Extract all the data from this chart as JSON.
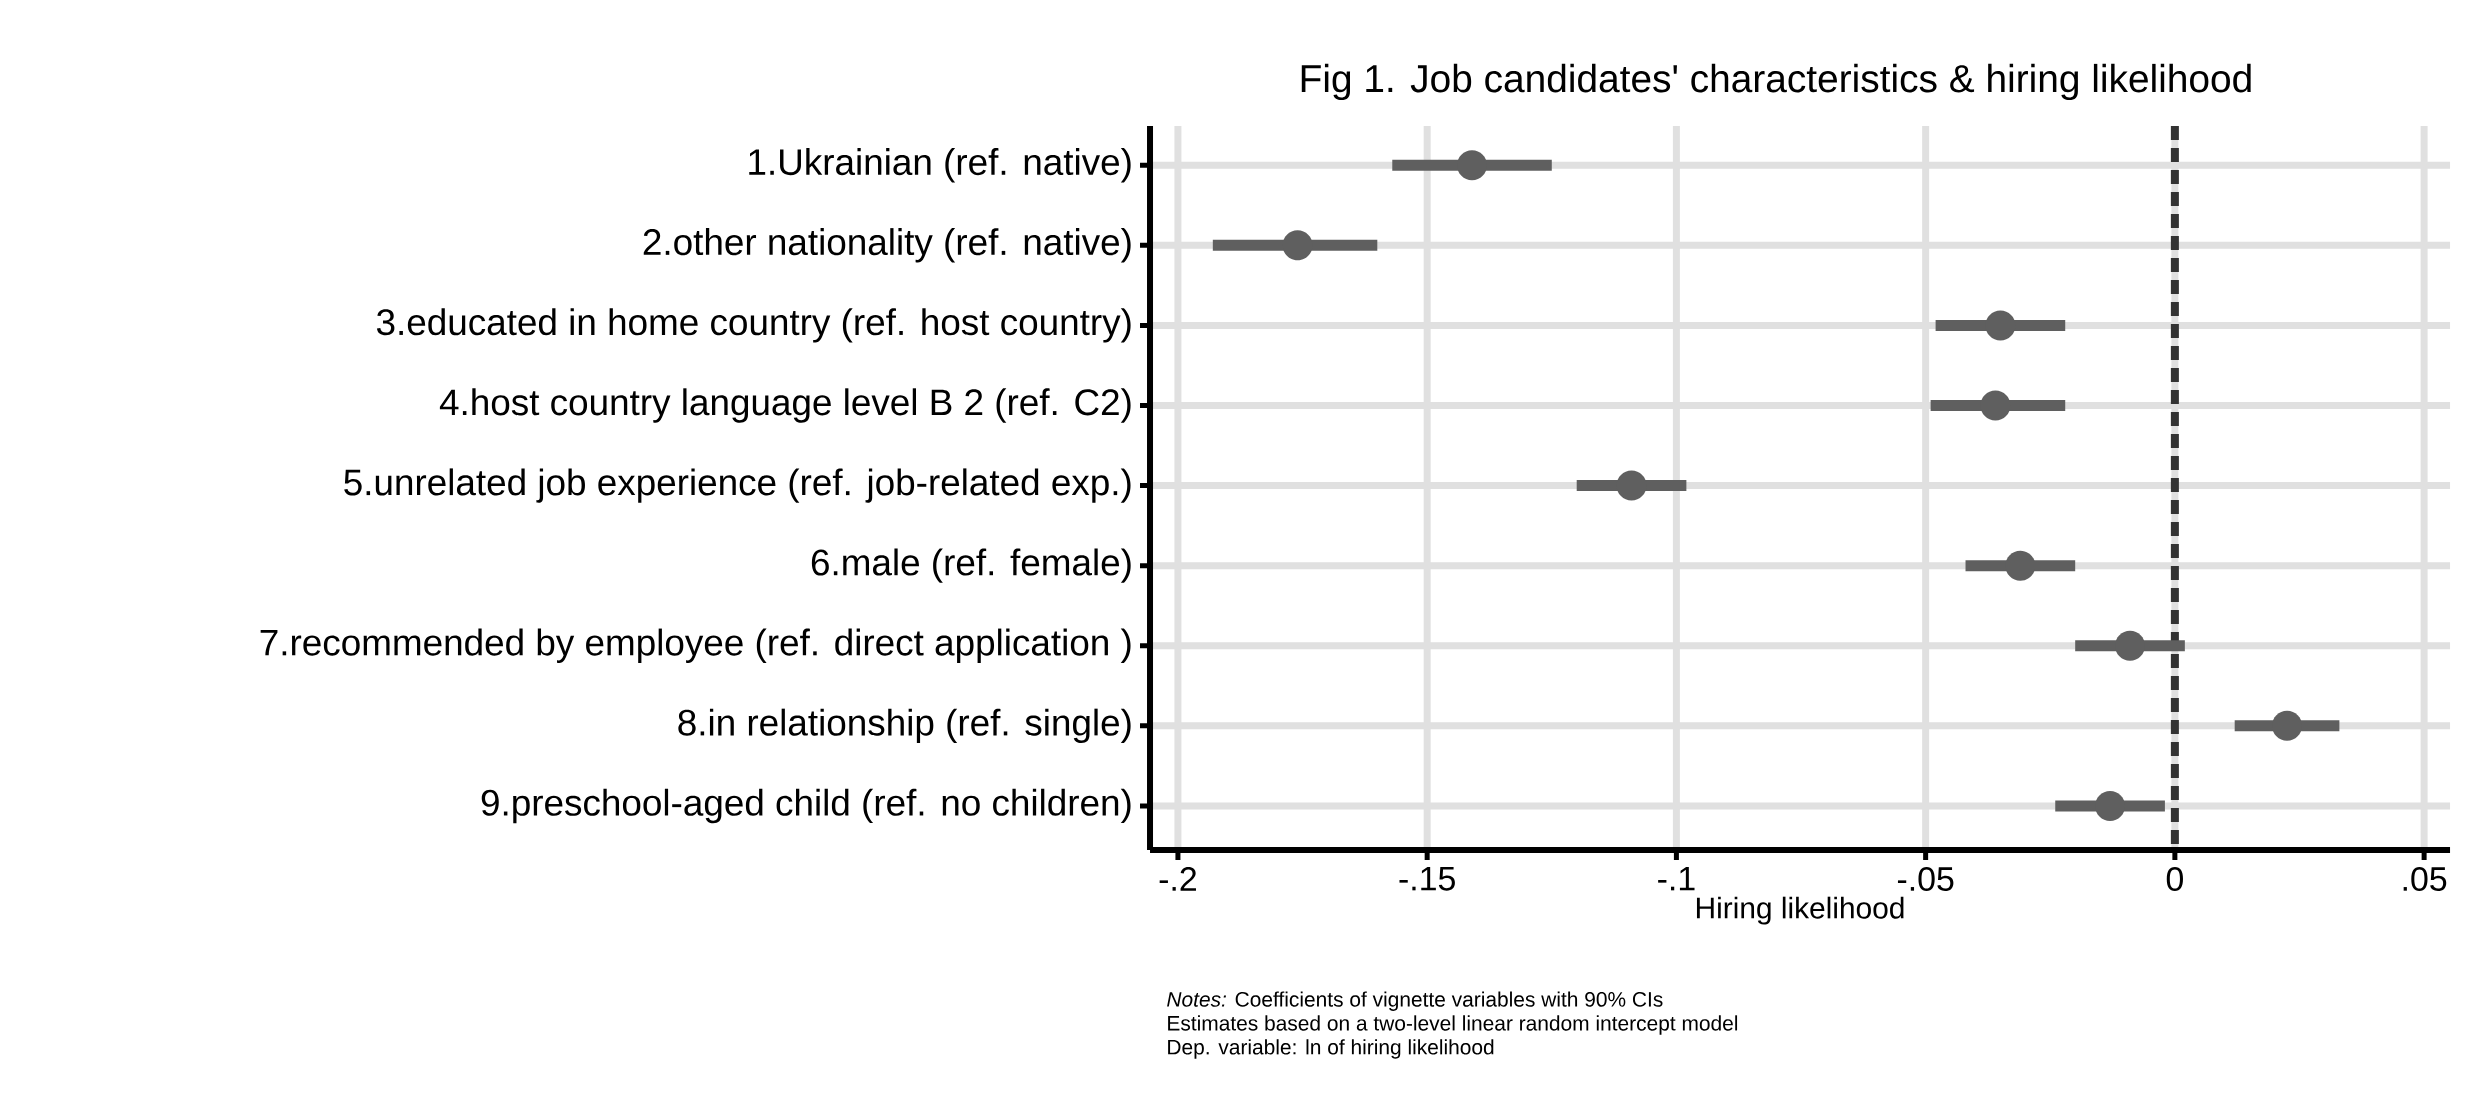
{
  "chart_data": {
    "type": "scatter",
    "orientation": "horizontal",
    "title": "Fig 1. Job candidates' characteristics & hiring likelihood",
    "xlabel": "Hiring likelihood",
    "categories": [
      "1.Ukrainian (ref. native)",
      "2.other nationality (ref. native)",
      "3.educated in home country (ref. host country)",
      "4.host country language level B 2 (ref. C2)",
      "5.unrelated job experience  (ref. job-related exp.)",
      "6.male (ref. female)",
      "7.recommended by employee (ref. direct application )",
      "8.in relationship (ref. single)",
      "9.preschool-aged child (ref. no children)"
    ],
    "values": [
      -0.141,
      -0.176,
      -0.035,
      -0.036,
      -0.109,
      -0.031,
      -0.009,
      0.0225,
      -0.013
    ],
    "errors": [
      [
        -0.157,
        -0.125
      ],
      [
        -0.193,
        -0.16
      ],
      [
        -0.048,
        -0.022
      ],
      [
        -0.049,
        -0.022
      ],
      [
        -0.12,
        -0.098
      ],
      [
        -0.042,
        -0.02
      ],
      [
        -0.02,
        0.002
      ],
      [
        0.012,
        0.033
      ],
      [
        -0.024,
        -0.002
      ]
    ],
    "color": "#5f5f5f",
    "marker": "circle",
    "grid": true,
    "xlim": [
      -0.2056,
      0.0552
    ],
    "xticks": [
      {
        "value": -0.2,
        "label": "-.2"
      },
      {
        "value": -0.15,
        "label": "-.15"
      },
      {
        "value": -0.1,
        "label": "-.1"
      },
      {
        "value": -0.05,
        "label": "-.05"
      },
      0,
      {
        "value": 0.05,
        "label": ".05"
      }
    ],
    "ref_lines": [
      {
        "axis": "x",
        "value": 0,
        "color": "#333333",
        "line_style": "dashed"
      }
    ],
    "annotations": [
      "*Notes:* Coefficients of vignette variables with 90% CIs",
      "Estimates based on a two-level linear random intercept model",
      "Dep. variable: ln of hiring likelihood"
    ]
  }
}
